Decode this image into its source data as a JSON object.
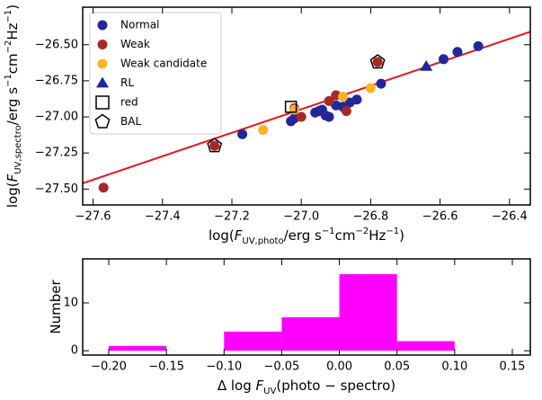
{
  "chart_data": [
    {
      "type": "scatter",
      "x_label": [
        "log(",
        "F",
        "UV,photo",
        "/erg s",
        "−1",
        "cm",
        "−2",
        "Hz",
        "−1",
        ")"
      ],
      "y_label": [
        "log(",
        "F",
        "UV,spectro",
        "/erg s",
        "−1",
        "cm",
        "−2",
        "Hz",
        "−1",
        ")"
      ],
      "xlim": [
        -27.63,
        -26.34
      ],
      "ylim": [
        -27.61,
        -26.24
      ],
      "xticks": [
        {
          "value": -27.6,
          "label": "−27.6"
        },
        {
          "value": -27.4,
          "label": "−27.4"
        },
        {
          "value": -27.2,
          "label": "−27.2"
        },
        {
          "value": -27.0,
          "label": "−27.0"
        },
        {
          "value": -26.8,
          "label": "−26.8"
        },
        {
          "value": -26.6,
          "label": "−26.6"
        },
        {
          "value": -26.4,
          "label": "−26.4"
        }
      ],
      "yticks": [
        {
          "value": -27.5,
          "label": "−27.50"
        },
        {
          "value": -27.25,
          "label": "−27.25"
        },
        {
          "value": -27.0,
          "label": "−27.00"
        },
        {
          "value": -26.75,
          "label": "−26.75"
        },
        {
          "value": -26.5,
          "label": "−26.50"
        }
      ],
      "legend": "upper left",
      "line": {
        "color": "#e8141c",
        "x": [
          -27.63,
          -26.34
        ],
        "y": [
          -27.46,
          -26.41
        ]
      },
      "series": [
        {
          "name": "Normal",
          "color": "#24279a",
          "marker": "circle",
          "x": [
            -27.17,
            -27.03,
            -27.02,
            -26.96,
            -26.95,
            -26.94,
            -26.93,
            -26.92,
            -26.9,
            -26.88,
            -26.86,
            -26.84,
            -26.77,
            -26.59,
            -26.55,
            -26.49
          ],
          "values": [
            -27.12,
            -27.03,
            -27.01,
            -26.97,
            -26.96,
            -26.95,
            -26.99,
            -27.0,
            -26.92,
            -26.93,
            -26.9,
            -26.88,
            -26.77,
            -26.6,
            -26.55,
            -26.51
          ]
        },
        {
          "name": "Weak",
          "color": "#a8282a",
          "marker": "circle",
          "x": [
            -27.57,
            -27.25,
            -27.0,
            -26.92,
            -26.9,
            -26.87,
            -26.78,
            -27.02
          ],
          "values": [
            -27.49,
            -27.2,
            -27.0,
            -26.89,
            -26.85,
            -26.96,
            -26.62,
            -26.94
          ]
        },
        {
          "name": "Weak candidate",
          "color": "#fbb328",
          "marker": "circle",
          "x": [
            -27.11,
            -27.02,
            -26.88,
            -26.8
          ],
          "values": [
            -27.09,
            -26.95,
            -26.86,
            -26.8
          ]
        },
        {
          "name": "RL",
          "color": "#1a2a9a",
          "marker": "triangle",
          "x": [
            -26.64
          ],
          "values": [
            -26.65
          ]
        },
        {
          "name": "red",
          "color": "#000000",
          "marker": "square",
          "x": [
            -27.03
          ],
          "values": [
            -26.93
          ]
        },
        {
          "name": "BAL",
          "color": "#000000",
          "marker": "pentagon",
          "x": [
            -27.25,
            -26.78
          ],
          "values": [
            -27.2,
            -26.62
          ]
        }
      ]
    },
    {
      "type": "histogram",
      "x_label": [
        "Δ log ",
        "F",
        "UV",
        "(photo − spectro)"
      ],
      "y_label": [
        "Number"
      ],
      "color": "#ff00ff",
      "bins": [
        -0.2,
        -0.15,
        -0.1,
        -0.05,
        0.0,
        0.05,
        0.1
      ],
      "values": [
        1,
        0,
        4,
        7,
        16,
        2
      ],
      "xlim": [
        -0.2226,
        0.1656
      ],
      "ylim": [
        -0.9,
        19.2
      ],
      "xticks": [
        {
          "value": -0.2,
          "label": "−0.20"
        },
        {
          "value": -0.15,
          "label": "−0.15"
        },
        {
          "value": -0.1,
          "label": "−0.10"
        },
        {
          "value": -0.05,
          "label": "−0.05"
        },
        {
          "value": 0.0,
          "label": "0.00"
        },
        {
          "value": 0.05,
          "label": "0.05"
        },
        {
          "value": 0.1,
          "label": "0.10"
        },
        {
          "value": 0.15,
          "label": "0.15"
        }
      ],
      "yticks": [
        0,
        10
      ]
    }
  ]
}
